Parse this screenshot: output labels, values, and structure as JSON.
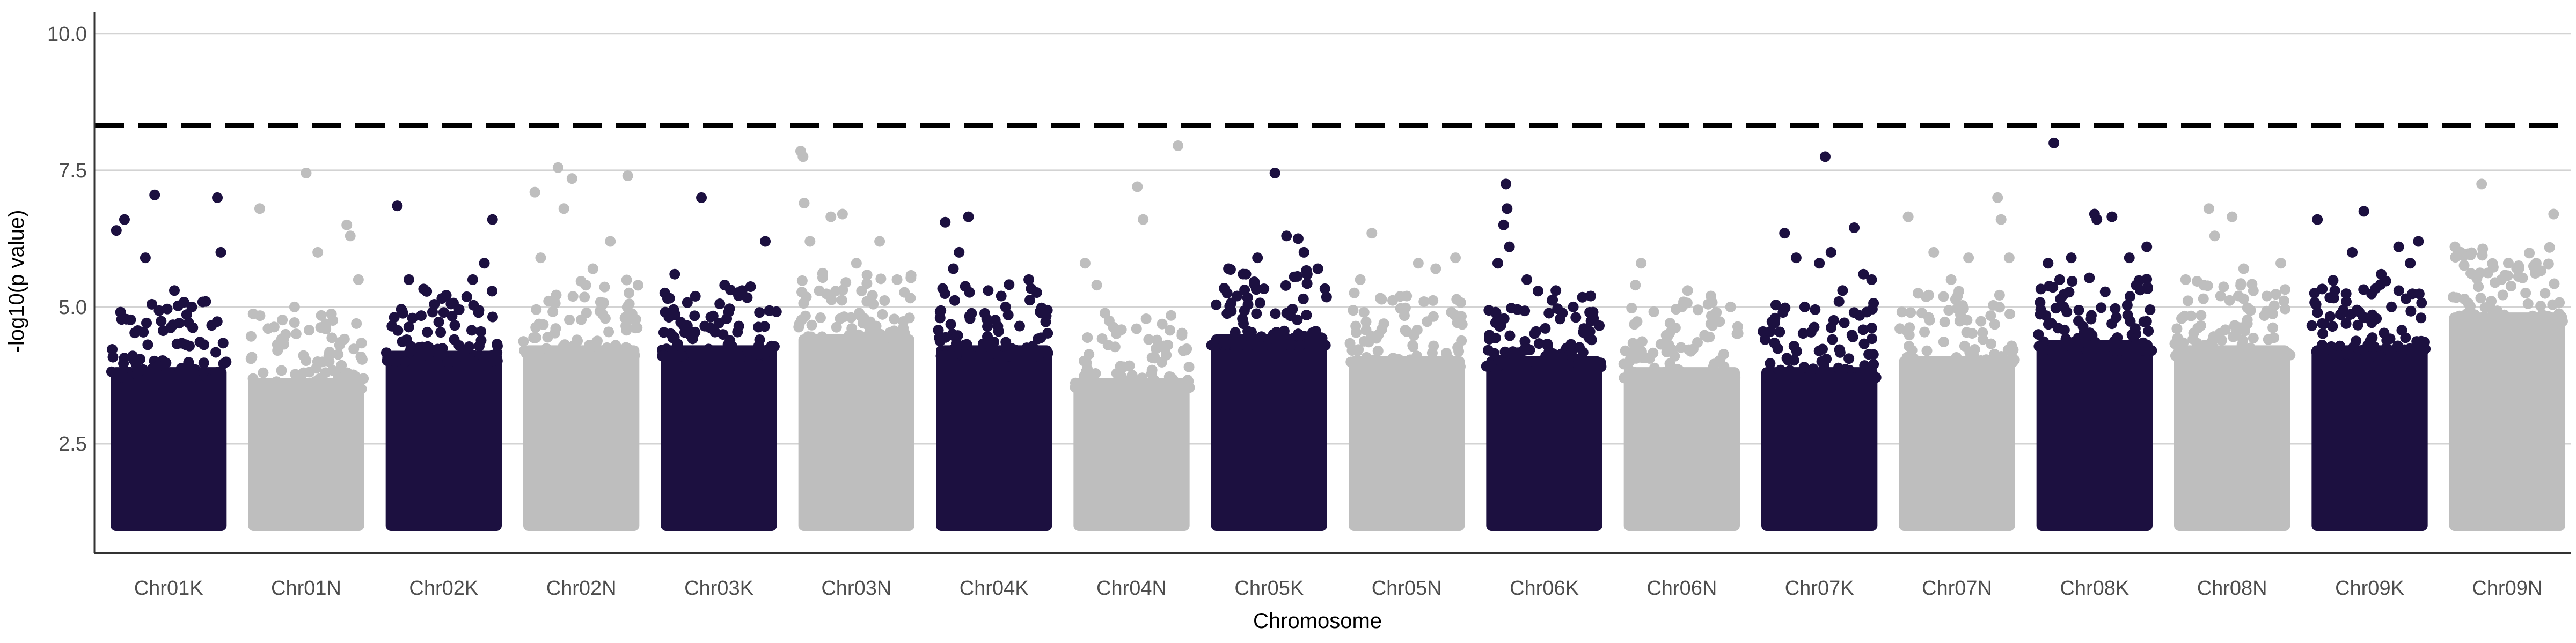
{
  "chart_data": {
    "type": "scatter",
    "subtype": "manhattan",
    "title": "",
    "xlabel": "Chromosome",
    "ylabel": "-log10(p value)",
    "ylim": [
      0.5,
      10.4
    ],
    "yticks": [
      2.5,
      5.0,
      7.5,
      10.0
    ],
    "ytick_labels": [
      "2.5",
      "5.0",
      "7.5",
      "10.0"
    ],
    "grid": "horizontal-major",
    "legend": "none",
    "threshold": {
      "value": 8.32,
      "style": "dashed",
      "color": "#000000"
    },
    "colors": {
      "odd": "#1c1040",
      "even": "#bebebe"
    },
    "categories": [
      "Chr01K",
      "Chr01N",
      "Chr02K",
      "Chr02N",
      "Chr03K",
      "Chr03N",
      "Chr04K",
      "Chr04N",
      "Chr05K",
      "Chr05N",
      "Chr06K",
      "Chr06N",
      "Chr07K",
      "Chr07N",
      "Chr08K",
      "Chr08N",
      "Chr09K",
      "Chr09N"
    ],
    "dense_floor": 1.0,
    "series": [
      {
        "name": "Chr01K",
        "ceiling": 4.2,
        "top_points": [
          [
            0.05,
            6.4
          ],
          [
            0.12,
            6.6
          ],
          [
            0.3,
            5.9
          ],
          [
            0.38,
            7.05
          ],
          [
            0.55,
            5.3
          ],
          [
            0.7,
            5.0
          ],
          [
            0.82,
            5.1
          ],
          [
            0.92,
            7.0
          ],
          [
            0.95,
            6.0
          ]
        ]
      },
      {
        "name": "Chr01N",
        "ceiling": 4.0,
        "top_points": [
          [
            0.1,
            6.8
          ],
          [
            0.4,
            5.0
          ],
          [
            0.5,
            7.45
          ],
          [
            0.6,
            6.0
          ],
          [
            0.85,
            6.5
          ],
          [
            0.88,
            6.3
          ],
          [
            0.95,
            5.5
          ]
        ]
      },
      {
        "name": "Chr02K",
        "ceiling": 4.5,
        "top_points": [
          [
            0.1,
            6.85
          ],
          [
            0.2,
            5.5
          ],
          [
            0.5,
            4.9
          ],
          [
            0.75,
            5.5
          ],
          [
            0.85,
            5.8
          ],
          [
            0.92,
            6.6
          ]
        ]
      },
      {
        "name": "Chr02N",
        "ceiling": 4.6,
        "top_points": [
          [
            0.1,
            7.1
          ],
          [
            0.15,
            5.9
          ],
          [
            0.3,
            7.55
          ],
          [
            0.35,
            6.8
          ],
          [
            0.42,
            7.35
          ],
          [
            0.6,
            5.7
          ],
          [
            0.75,
            6.2
          ],
          [
            0.9,
            7.4
          ]
        ]
      },
      {
        "name": "Chr03K",
        "ceiling": 4.6,
        "top_points": [
          [
            0.12,
            5.6
          ],
          [
            0.35,
            7.0
          ],
          [
            0.55,
            5.4
          ],
          [
            0.7,
            5.3
          ],
          [
            0.85,
            4.9
          ],
          [
            0.9,
            6.2
          ]
        ]
      },
      {
        "name": "Chr03N",
        "ceiling": 4.8,
        "top_points": [
          [
            0.02,
            7.85
          ],
          [
            0.04,
            7.75
          ],
          [
            0.05,
            6.9
          ],
          [
            0.1,
            6.2
          ],
          [
            0.28,
            6.65
          ],
          [
            0.38,
            6.7
          ],
          [
            0.5,
            5.8
          ],
          [
            0.7,
            6.2
          ],
          [
            0.85,
            5.5
          ]
        ]
      },
      {
        "name": "Chr04K",
        "ceiling": 4.6,
        "top_points": [
          [
            0.08,
            6.55
          ],
          [
            0.15,
            5.7
          ],
          [
            0.2,
            6.0
          ],
          [
            0.28,
            6.65
          ],
          [
            0.45,
            5.3
          ],
          [
            0.6,
            5.0
          ],
          [
            0.8,
            5.5
          ]
        ]
      },
      {
        "name": "Chr04N",
        "ceiling": 4.0,
        "top_points": [
          [
            0.1,
            5.8
          ],
          [
            0.2,
            5.4
          ],
          [
            0.55,
            7.2
          ],
          [
            0.6,
            6.6
          ],
          [
            0.9,
            7.95
          ]
        ]
      },
      {
        "name": "Chr05K",
        "ceiling": 4.8,
        "top_points": [
          [
            0.15,
            5.7
          ],
          [
            0.3,
            5.6
          ],
          [
            0.4,
            5.9
          ],
          [
            0.55,
            7.45
          ],
          [
            0.65,
            6.3
          ],
          [
            0.75,
            6.25
          ],
          [
            0.8,
            6.0
          ],
          [
            0.92,
            5.7
          ]
        ]
      },
      {
        "name": "Chr05N",
        "ceiling": 4.4,
        "top_points": [
          [
            0.1,
            5.5
          ],
          [
            0.2,
            6.35
          ],
          [
            0.5,
            5.2
          ],
          [
            0.6,
            5.8
          ],
          [
            0.75,
            5.7
          ],
          [
            0.92,
            5.9
          ]
        ]
      },
      {
        "name": "Chr06K",
        "ceiling": 4.4,
        "top_points": [
          [
            0.1,
            5.8
          ],
          [
            0.15,
            6.5
          ],
          [
            0.17,
            7.25
          ],
          [
            0.18,
            6.8
          ],
          [
            0.2,
            6.1
          ],
          [
            0.35,
            5.5
          ],
          [
            0.6,
            5.3
          ],
          [
            0.75,
            5.0
          ],
          [
            0.9,
            5.2
          ]
        ]
      },
      {
        "name": "Chr06N",
        "ceiling": 4.2,
        "top_points": [
          [
            0.1,
            5.4
          ],
          [
            0.15,
            5.8
          ],
          [
            0.5,
            5.0
          ],
          [
            0.55,
            5.3
          ],
          [
            0.75,
            5.2
          ],
          [
            0.92,
            5.0
          ]
        ]
      },
      {
        "name": "Chr07K",
        "ceiling": 4.2,
        "top_points": [
          [
            0.2,
            6.35
          ],
          [
            0.3,
            5.9
          ],
          [
            0.5,
            5.8
          ],
          [
            0.55,
            7.75
          ],
          [
            0.6,
            6.0
          ],
          [
            0.7,
            5.3
          ],
          [
            0.8,
            6.45
          ],
          [
            0.88,
            5.6
          ],
          [
            0.95,
            5.5
          ]
        ]
      },
      {
        "name": "Chr07N",
        "ceiling": 4.4,
        "top_points": [
          [
            0.08,
            6.65
          ],
          [
            0.3,
            6.0
          ],
          [
            0.45,
            5.5
          ],
          [
            0.6,
            5.9
          ],
          [
            0.85,
            7.0
          ],
          [
            0.88,
            6.6
          ],
          [
            0.95,
            5.9
          ]
        ]
      },
      {
        "name": "Chr08K",
        "ceiling": 4.7,
        "top_points": [
          [
            0.1,
            5.8
          ],
          [
            0.15,
            8.0
          ],
          [
            0.2,
            5.5
          ],
          [
            0.3,
            5.9
          ],
          [
            0.5,
            6.7
          ],
          [
            0.52,
            6.6
          ],
          [
            0.65,
            6.65
          ],
          [
            0.8,
            5.9
          ],
          [
            0.95,
            6.1
          ]
        ]
      },
      {
        "name": "Chr08N",
        "ceiling": 4.6,
        "top_points": [
          [
            0.1,
            5.5
          ],
          [
            0.3,
            6.8
          ],
          [
            0.35,
            6.3
          ],
          [
            0.5,
            6.65
          ],
          [
            0.6,
            5.7
          ],
          [
            0.8,
            5.2
          ],
          [
            0.92,
            5.8
          ]
        ]
      },
      {
        "name": "Chr09K",
        "ceiling": 4.6,
        "top_points": [
          [
            0.05,
            6.6
          ],
          [
            0.2,
            5.3
          ],
          [
            0.35,
            6.0
          ],
          [
            0.45,
            6.75
          ],
          [
            0.6,
            5.6
          ],
          [
            0.75,
            6.1
          ],
          [
            0.85,
            5.8
          ],
          [
            0.92,
            6.2
          ]
        ]
      },
      {
        "name": "Chr09N",
        "ceiling": 5.2,
        "top_points": [
          [
            0.05,
            6.1
          ],
          [
            0.1,
            6.0
          ],
          [
            0.2,
            5.6
          ],
          [
            0.28,
            7.25
          ],
          [
            0.45,
            5.5
          ],
          [
            0.6,
            5.7
          ],
          [
            0.75,
            5.8
          ],
          [
            0.9,
            6.7
          ]
        ]
      }
    ]
  }
}
